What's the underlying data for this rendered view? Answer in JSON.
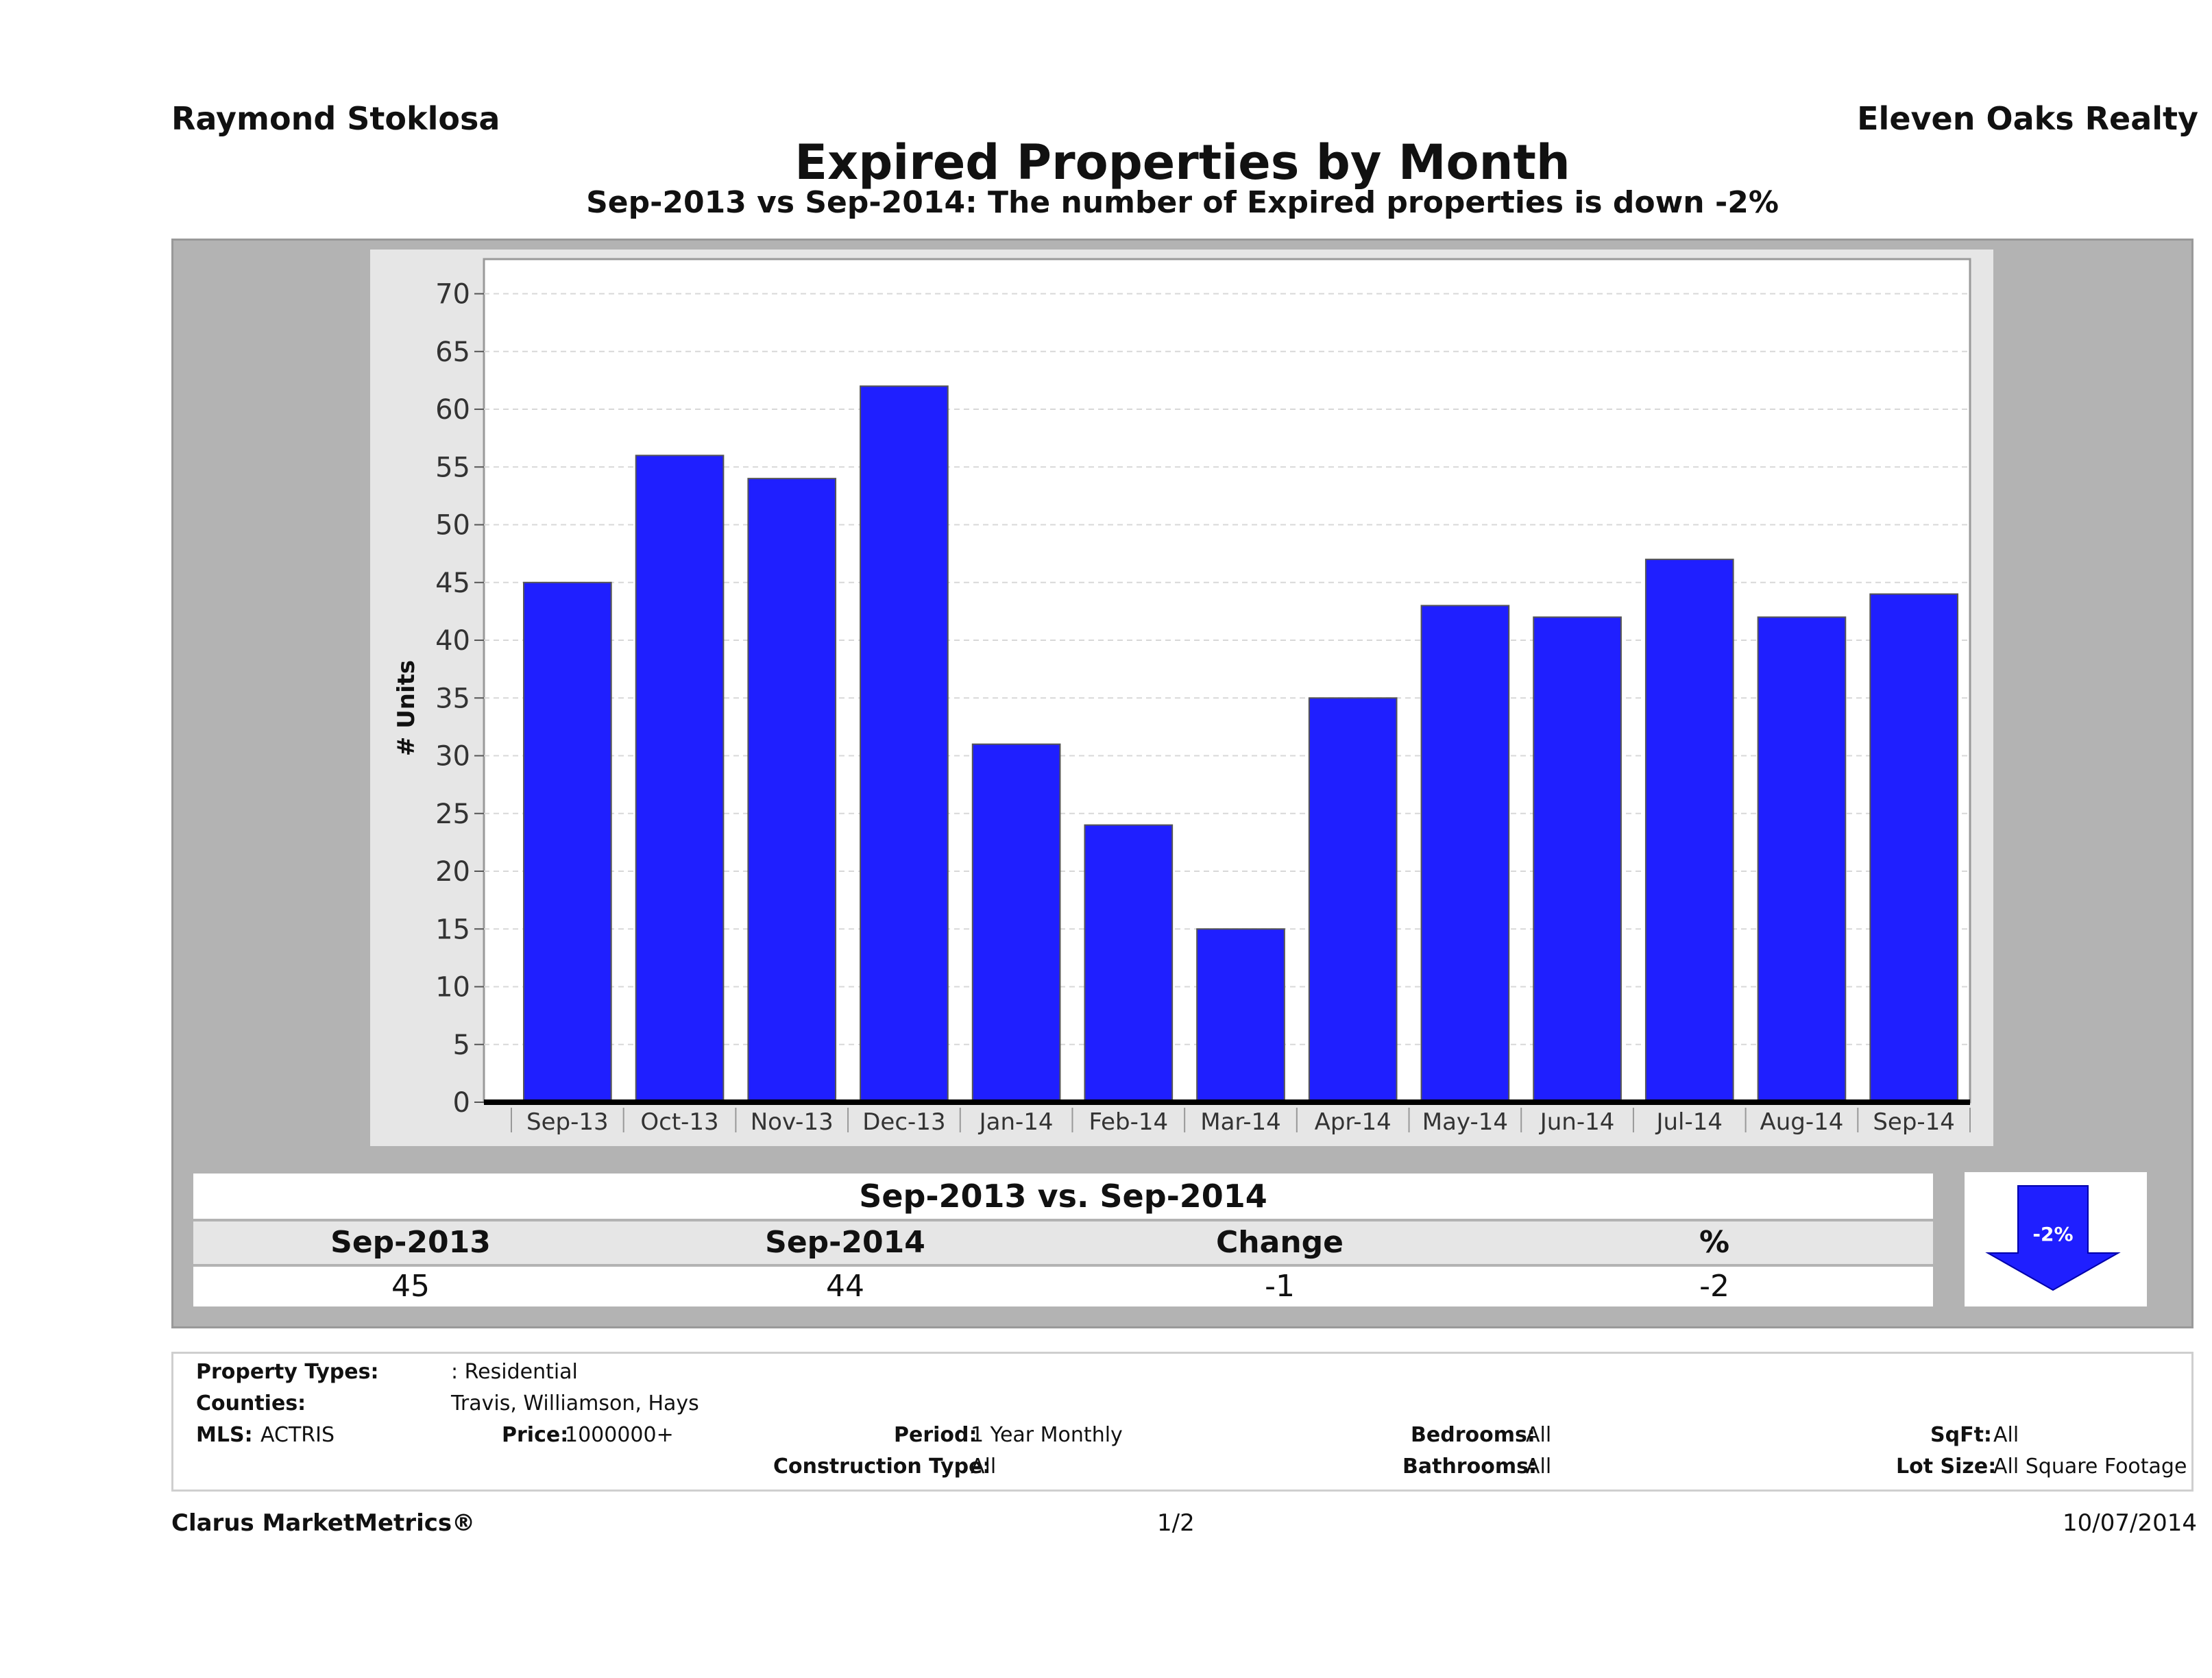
{
  "header": {
    "agent_name": "Raymond Stoklosa",
    "company": "Eleven Oaks Realty"
  },
  "chart_data": {
    "type": "bar",
    "title": "Expired Properties by Month",
    "subtitle": "Sep-2013 vs Sep-2014: The number of Expired  properties is down -2%",
    "ylabel": "# Units",
    "xlabel": "",
    "ylim": [
      0,
      73
    ],
    "yticks": [
      0,
      5,
      10,
      15,
      20,
      25,
      30,
      35,
      40,
      45,
      50,
      55,
      60,
      65,
      70
    ],
    "categories": [
      "Sep-13",
      "Oct-13",
      "Nov-13",
      "Dec-13",
      "Jan-14",
      "Feb-14",
      "Mar-14",
      "Apr-14",
      "May-14",
      "Jun-14",
      "Jul-14",
      "Aug-14",
      "Sep-14"
    ],
    "values": [
      45,
      56,
      54,
      62,
      31,
      24,
      15,
      35,
      43,
      42,
      47,
      42,
      44
    ],
    "bar_color": "#1f1fff",
    "grid": true
  },
  "summary": {
    "title": "Sep-2013 vs. Sep-2014",
    "headers": [
      "Sep-2013",
      "Sep-2014",
      "Change",
      "%"
    ],
    "values": [
      "45",
      "44",
      "-1",
      "-2"
    ],
    "badge": "-2%",
    "arrow_icon": "down-arrow-icon"
  },
  "criteria": {
    "property_types_label": "Property Types:",
    "property_types_value": ": Residential",
    "counties_label": "Counties:",
    "counties_value": "Travis, Williamson, Hays",
    "mls_label": "MLS:",
    "mls_value": "ACTRIS",
    "price_label": "Price:",
    "price_value": "1000000+",
    "period_label": "Period:",
    "period_value": "1 Year Monthly",
    "construction_label": "Construction Type:",
    "construction_value": "All",
    "bedrooms_label": "Bedrooms:",
    "bedrooms_value": "All",
    "bathrooms_label": "Bathrooms:",
    "bathrooms_value": "All",
    "sqft_label": "SqFt:",
    "sqft_value": "All",
    "lotsize_label": "Lot Size:",
    "lotsize_value": "All Square Footage"
  },
  "footer": {
    "brand": "Clarus MarketMetrics®",
    "page": "1/2",
    "date": "10/07/2014"
  }
}
